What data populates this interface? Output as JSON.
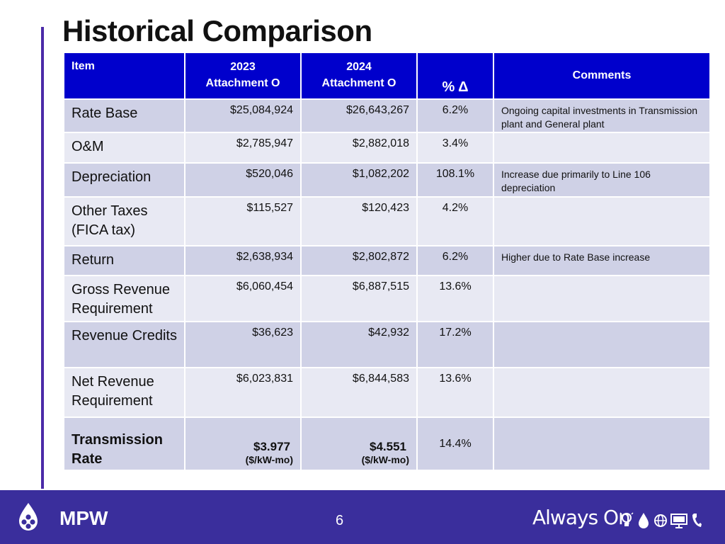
{
  "title": "Historical Comparison",
  "table": {
    "headers": {
      "item": "Item",
      "y2023": "2023\nAttachment O",
      "y2024": "2024\nAttachment O",
      "pct": "% Δ",
      "comments": "Comments"
    },
    "rows": [
      {
        "item": "Rate Base",
        "v2023": "$25,084,924",
        "v2024": "$26,643,267",
        "pct": "6.2%",
        "comment": "Ongoing capital investments in Transmission plant and General plant"
      },
      {
        "item": "O&M",
        "v2023": "$2,785,947",
        "v2024": "$2,882,018",
        "pct": "3.4%",
        "comment": ""
      },
      {
        "item": "Depreciation",
        "v2023": "$520,046",
        "v2024": "$1,082,202",
        "pct": "108.1%",
        "comment": "Increase due primarily to Line 106 depreciation"
      },
      {
        "item": "Other Taxes (FICA tax)",
        "v2023": "$115,527",
        "v2024": "$120,423",
        "pct": "4.2%",
        "comment": ""
      },
      {
        "item": "Return",
        "v2023": "$2,638,934",
        "v2024": "$2,802,872",
        "pct": "6.2%",
        "comment": "Higher due to Rate Base increase"
      },
      {
        "item": "Gross Revenue Requirement",
        "v2023": "$6,060,454",
        "v2024": "$6,887,515",
        "pct": "13.6%",
        "comment": ""
      },
      {
        "item": "Revenue Credits",
        "v2023": "$36,623",
        "v2024": "$42,932",
        "pct": "17.2%",
        "comment": ""
      },
      {
        "item": "Net Revenue Requirement",
        "v2023": "$6,023,831",
        "v2024": "$6,844,583",
        "pct": "13.6%",
        "comment": ""
      },
      {
        "item": "Transmission Rate",
        "v2023": "$3.977",
        "v2024": "$4.551",
        "unit": "($/kW-mo)",
        "pct": "14.4%",
        "comment": ""
      }
    ]
  },
  "footer": {
    "logo_text": "MPW",
    "page_number": "6",
    "tagline": "Always On",
    "icons": [
      "lightbulb-icon",
      "water-drop-icon",
      "globe-icon",
      "monitor-icon",
      "phone-icon"
    ]
  },
  "colors": {
    "header_bg": "#0000cc",
    "row_dark": "#cfd1e6",
    "row_light": "#e8e9f3",
    "footer_bg": "#3a2e9c",
    "accent_line": "#4b2aa8"
  }
}
